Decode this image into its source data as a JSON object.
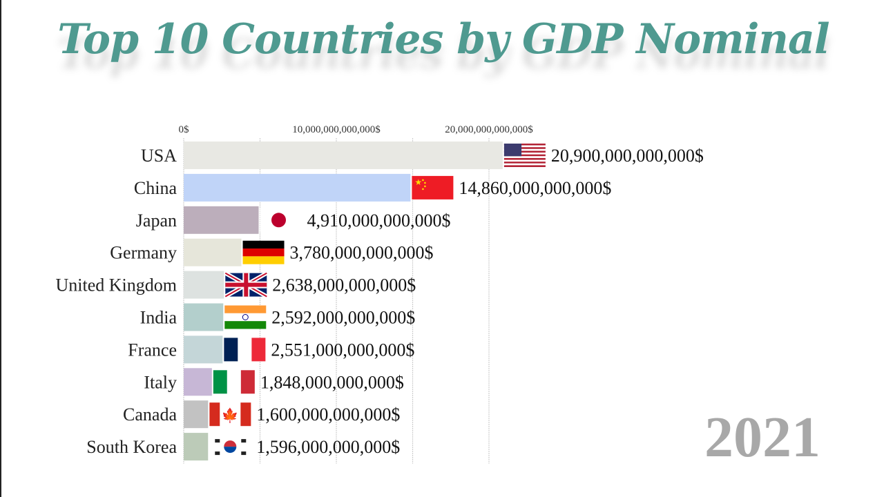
{
  "title": "Top 10 Countries by GDP Nominal",
  "year": "2021",
  "chart_data": {
    "type": "bar",
    "orientation": "horizontal",
    "title": "Top 10 Countries by GDP Nominal",
    "xlabel": "",
    "ylabel": "",
    "xlim": [
      0,
      21000000000000
    ],
    "x_ticks": [
      0,
      10000000000000,
      20000000000000
    ],
    "x_tick_labels": [
      "0$",
      "10,000,000,000,000$",
      "20,000,000,000,000$"
    ],
    "gridlines": [
      0,
      5000000000000,
      10000000000000,
      15000000000000,
      20000000000000
    ],
    "categories": [
      "USA",
      "China",
      "Japan",
      "Germany",
      "United Kingdom",
      "India",
      "France",
      "Italy",
      "Canada",
      "South Korea"
    ],
    "values": [
      20900000000000,
      14860000000000,
      4910000000000,
      3780000000000,
      2638000000000,
      2592000000000,
      2551000000000,
      1848000000000,
      1600000000000,
      1596000000000
    ],
    "value_labels": [
      "20,900,000,000,000$",
      "14,860,000,000,000$",
      "4,910,000,000,000$",
      "3,780,000,000,000$",
      "2,638,000,000,000$",
      "2,592,000,000,000$",
      "2,551,000,000,000$",
      "1,848,000,000,000$",
      "1,600,000,000,000$",
      "1,596,000,000,000$"
    ],
    "colors": [
      "#e8e8e3",
      "#c0d4f8",
      "#bcaebb",
      "#e6e6da",
      "#dde2e0",
      "#b3cfcc",
      "#c4d6d8",
      "#c7b7d6",
      "#c2c2c2",
      "#bccbb8"
    ],
    "flags": [
      "usa-flag-icon",
      "china-flag-icon",
      "japan-flag-icon",
      "germany-flag-icon",
      "uk-flag-icon",
      "india-flag-icon",
      "france-flag-icon",
      "italy-flag-icon",
      "canada-flag-icon",
      "south-korea-flag-icon"
    ]
  }
}
